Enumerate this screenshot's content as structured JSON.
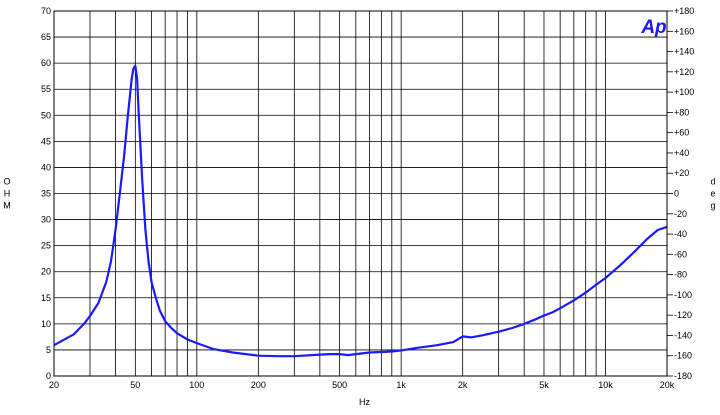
{
  "chart_data": {
    "type": "line",
    "title": "",
    "xlabel": "Hz",
    "ylabel": "O H M",
    "y2label": "d e g",
    "xscale": "log",
    "xlim": [
      20,
      20000
    ],
    "ylim": [
      0,
      70
    ],
    "y2lim": [
      -180,
      180
    ],
    "grid": true,
    "x_tick_labels": [
      {
        "value": 20,
        "label": "20"
      },
      {
        "value": 50,
        "label": "50"
      },
      {
        "value": 100,
        "label": "100"
      },
      {
        "value": 200,
        "label": "200"
      },
      {
        "value": 500,
        "label": "500"
      },
      {
        "value": 1000,
        "label": "1k"
      },
      {
        "value": 2000,
        "label": "2k"
      },
      {
        "value": 5000,
        "label": "5k"
      },
      {
        "value": 10000,
        "label": "10k"
      },
      {
        "value": 20000,
        "label": "20k"
      }
    ],
    "y_ticks": [
      "0",
      "5",
      "10",
      "15",
      "20",
      "25",
      "30",
      "35",
      "40",
      "45",
      "50",
      "55",
      "60",
      "65",
      "70"
    ],
    "y2_ticks": [
      "-180",
      "-160",
      "-140",
      "-120",
      "-100",
      "-80",
      "-60",
      "-40",
      "-20",
      "0",
      "+20",
      "+40",
      "+60",
      "+80",
      "+100",
      "+120",
      "+140",
      "+160",
      "+180"
    ],
    "series": [
      {
        "color": "#1a1aff",
        "x": [
          20,
          25,
          28,
          30,
          33,
          36,
          38,
          40,
          42,
          44,
          46,
          48,
          49,
          50,
          51,
          52,
          54,
          56,
          58,
          60,
          63,
          66,
          70,
          75,
          80,
          90,
          100,
          120,
          150,
          200,
          250,
          300,
          400,
          450,
          500,
          550,
          600,
          700,
          800,
          900,
          1000,
          1200,
          1500,
          1800,
          2000,
          2200,
          2500,
          3000,
          3500,
          4000,
          4500,
          5000,
          5500,
          6000,
          7000,
          8000,
          9000,
          10000,
          12000,
          14000,
          16000,
          18000,
          20000
        ],
        "y": [
          5.9,
          8.0,
          10.0,
          11.5,
          14.0,
          18.0,
          22.0,
          28.0,
          35.0,
          42.0,
          50.0,
          57.0,
          59.0,
          59.5,
          57.0,
          50.0,
          38.0,
          28.0,
          22.0,
          18.0,
          15.0,
          12.5,
          10.5,
          9.2,
          8.2,
          7.0,
          6.3,
          5.2,
          4.5,
          3.9,
          3.8,
          3.8,
          4.1,
          4.2,
          4.2,
          4.0,
          4.2,
          4.5,
          4.6,
          4.7,
          4.9,
          5.4,
          5.9,
          6.5,
          7.6,
          7.4,
          7.8,
          8.5,
          9.2,
          10.0,
          10.8,
          11.6,
          12.2,
          13.0,
          14.5,
          16.0,
          17.5,
          18.8,
          21.5,
          24.0,
          26.3,
          28.0,
          28.6
        ]
      }
    ]
  },
  "logo": {
    "text": "Ap",
    "color": "#1a1aff"
  }
}
